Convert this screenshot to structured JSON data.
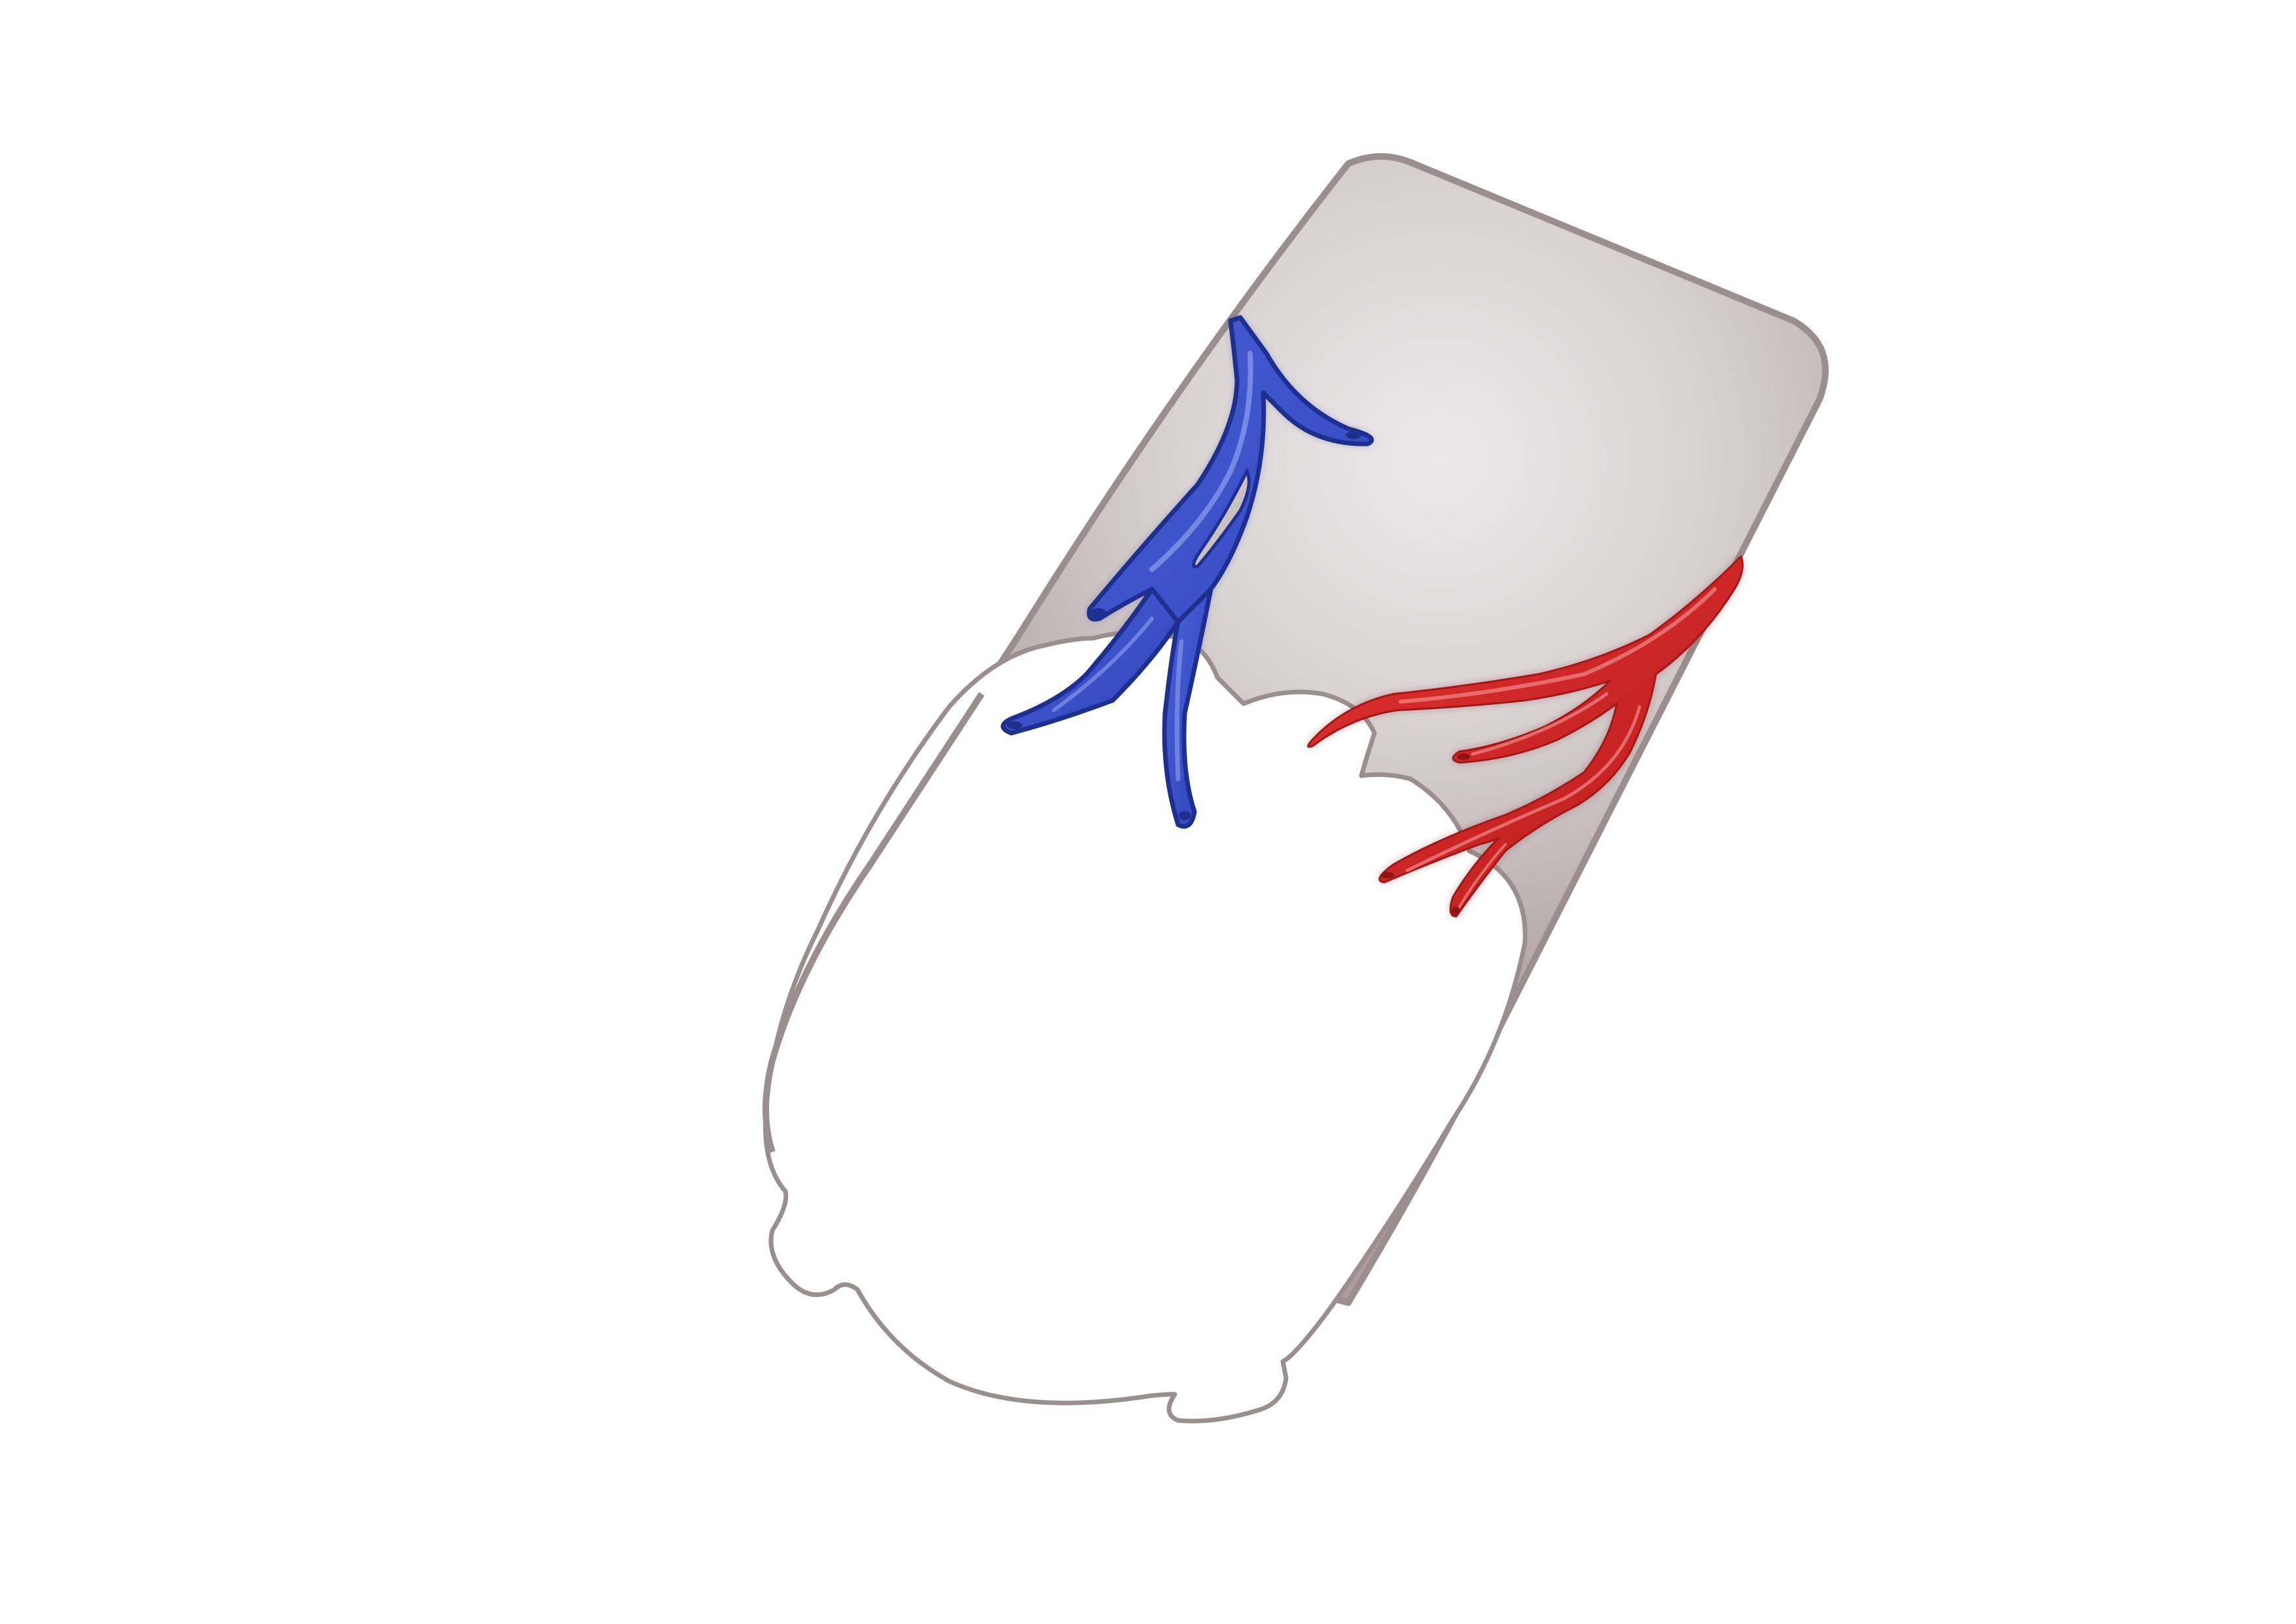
{
  "diagram": {
    "background": "#ffffff",
    "container": {
      "fill_center": "#ede9ea",
      "fill_edge": "#a89d9e",
      "stroke": "#9a8e8f"
    },
    "inner_body": {
      "fill": "#ffffff",
      "stroke": "#9a8e8f"
    },
    "vein": {
      "color": "#3b50c7",
      "dark": "#1e2f8f",
      "highlight": "#8fa0f0",
      "icon": "blue-vein-tree"
    },
    "artery": {
      "color": "#d42525",
      "dark": "#8f1414",
      "highlight": "#f08a8a",
      "icon": "red-artery-tree"
    }
  }
}
